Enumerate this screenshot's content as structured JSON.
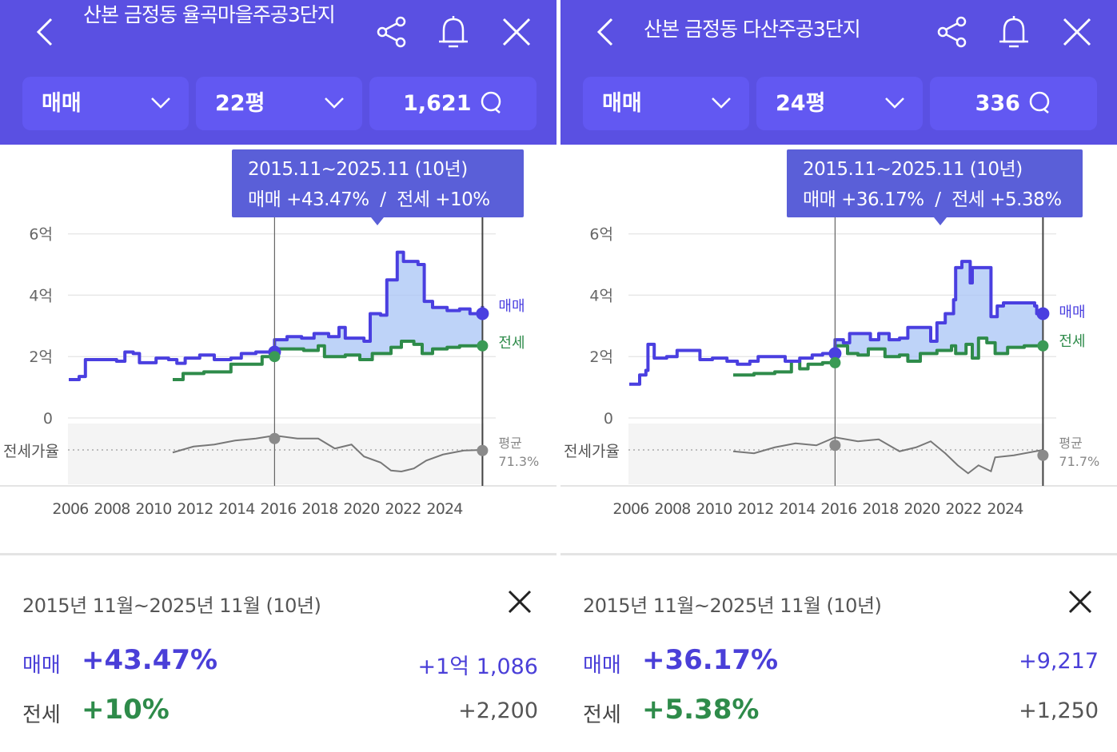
{
  "panels": [
    {
      "title": "산본 금정동 율곡마을주공3단지",
      "filter_type": "매매",
      "filter_size": "22평",
      "comment_count": "1,621",
      "tooltip": {
        "period": "2015.11~2025.11 (10년)",
        "maemae": "매매 +43.47%",
        "sep": "/",
        "jeonse": "전세 +10%"
      },
      "summary": {
        "period": "2015년 11월~2025년 11월 (10년)",
        "maemae_label": "매매",
        "maemae_pct": "+43.47%",
        "maemae_amt": "+1억 1,086",
        "jeonse_label": "전세",
        "jeonse_pct": "+10%",
        "jeonse_amt": "+2,200"
      },
      "chart_data": {
        "type": "line",
        "ylabel": "억",
        "ylim": [
          0,
          6
        ],
        "yticks": [
          "0",
          "2억",
          "4억",
          "6억"
        ],
        "xticks": [
          "2006",
          "2008",
          "2010",
          "2012",
          "2014",
          "2016",
          "2018",
          "2020",
          "2022",
          "2024"
        ],
        "xlim": [
          2006,
          2026
        ],
        "range": [
          2015.9,
          2025.9
        ],
        "legend": {
          "maemae": "매매",
          "jeonse": "전세"
        },
        "ratio_label": "전세가율",
        "avg_label": "평균",
        "avg_value": "71.3%",
        "avg": 71.3,
        "maemae": [
          [
            2006,
            1.25
          ],
          [
            2006.5,
            1.35
          ],
          [
            2006.8,
            1.9
          ],
          [
            2007.5,
            1.9
          ],
          [
            2008.3,
            1.85
          ],
          [
            2008.7,
            2.15
          ],
          [
            2009.1,
            2.1
          ],
          [
            2009.4,
            1.8
          ],
          [
            2010.2,
            1.95
          ],
          [
            2010.8,
            1.9
          ],
          [
            2011.2,
            1.78
          ],
          [
            2011.6,
            1.95
          ],
          [
            2012.3,
            2.05
          ],
          [
            2013,
            1.9
          ],
          [
            2013.8,
            1.95
          ],
          [
            2014.3,
            2.1
          ],
          [
            2015,
            2.15
          ],
          [
            2015.9,
            2.55
          ],
          [
            2016.5,
            2.65
          ],
          [
            2017.2,
            2.6
          ],
          [
            2017.8,
            2.75
          ],
          [
            2018.5,
            2.65
          ],
          [
            2019,
            2.95
          ],
          [
            2019.3,
            2.6
          ],
          [
            2020.2,
            2.5
          ],
          [
            2020.5,
            3.4
          ],
          [
            2021,
            3.35
          ],
          [
            2021.3,
            4.5
          ],
          [
            2021.8,
            5.4
          ],
          [
            2022.1,
            5.1
          ],
          [
            2022.8,
            5.0
          ],
          [
            2023.1,
            3.8
          ],
          [
            2023.5,
            3.6
          ],
          [
            2024.2,
            3.5
          ],
          [
            2024.8,
            3.55
          ],
          [
            2025.3,
            3.4
          ],
          [
            2025.9,
            3.65
          ]
        ],
        "jeonse": [
          [
            2011,
            1.25
          ],
          [
            2011.5,
            1.45
          ],
          [
            2012.5,
            1.5
          ],
          [
            2013.3,
            1.5
          ],
          [
            2013.8,
            1.75
          ],
          [
            2014.6,
            1.75
          ],
          [
            2015.3,
            2.0
          ],
          [
            2015.9,
            2.25
          ],
          [
            2016.5,
            2.25
          ],
          [
            2017.3,
            2.2
          ],
          [
            2018,
            2.35
          ],
          [
            2018.3,
            2.0
          ],
          [
            2019.3,
            2.05
          ],
          [
            2020,
            1.9
          ],
          [
            2020.6,
            2.1
          ],
          [
            2021.5,
            2.3
          ],
          [
            2022,
            2.5
          ],
          [
            2022.6,
            2.4
          ],
          [
            2023,
            2.1
          ],
          [
            2023.5,
            2.25
          ],
          [
            2024.2,
            2.3
          ],
          [
            2024.8,
            2.35
          ],
          [
            2025.9,
            2.45
          ]
        ],
        "ratio": [
          [
            2011,
            70
          ],
          [
            2012,
            73
          ],
          [
            2013,
            74
          ],
          [
            2014,
            76
          ],
          [
            2015,
            77
          ],
          [
            2015.9,
            78.5
          ],
          [
            2017,
            77
          ],
          [
            2018,
            77
          ],
          [
            2018.8,
            72
          ],
          [
            2019.6,
            74
          ],
          [
            2020.2,
            68
          ],
          [
            2021,
            65
          ],
          [
            2021.5,
            61
          ],
          [
            2022,
            60.5
          ],
          [
            2022.6,
            62
          ],
          [
            2023.2,
            66
          ],
          [
            2024,
            69
          ],
          [
            2025,
            71
          ],
          [
            2025.9,
            71.3
          ]
        ]
      }
    },
    {
      "title": "산본 금정동 다산주공3단지",
      "filter_type": "매매",
      "filter_size": "24평",
      "comment_count": "336",
      "tooltip": {
        "period": "2015.11~2025.11 (10년)",
        "maemae": "매매 +36.17%",
        "sep": "/",
        "jeonse": "전세 +5.38%"
      },
      "summary": {
        "period": "2015년 11월~2025년 11월 (10년)",
        "maemae_label": "매매",
        "maemae_pct": "+36.17%",
        "maemae_amt": "+9,217",
        "jeonse_label": "전세",
        "jeonse_pct": "+5.38%",
        "jeonse_amt": "+1,250"
      },
      "chart_data": {
        "type": "line",
        "ylabel": "억",
        "ylim": [
          0,
          6
        ],
        "yticks": [
          "0",
          "2억",
          "4억",
          "6억"
        ],
        "xticks": [
          "2006",
          "2008",
          "2010",
          "2012",
          "2014",
          "2016",
          "2018",
          "2020",
          "2022",
          "2024"
        ],
        "xlim": [
          2006,
          2026
        ],
        "range": [
          2015.9,
          2025.9
        ],
        "legend": {
          "maemae": "매매",
          "jeonse": "전세"
        },
        "ratio_label": "전세가율",
        "avg_label": "평균",
        "avg_value": "71.7%",
        "avg": 71.7,
        "maemae": [
          [
            2006,
            1.1
          ],
          [
            2006.5,
            1.4
          ],
          [
            2006.8,
            1.55
          ],
          [
            2006.9,
            2.4
          ],
          [
            2007.2,
            1.95
          ],
          [
            2007.8,
            2.0
          ],
          [
            2008.3,
            2.2
          ],
          [
            2009.2,
            2.2
          ],
          [
            2009.4,
            1.9
          ],
          [
            2010,
            1.95
          ],
          [
            2010.7,
            1.85
          ],
          [
            2011.2,
            1.75
          ],
          [
            2011.8,
            1.85
          ],
          [
            2012.2,
            2.0
          ],
          [
            2013,
            2.0
          ],
          [
            2013.5,
            1.85
          ],
          [
            2014.2,
            1.95
          ],
          [
            2014.8,
            2.05
          ],
          [
            2015.3,
            2.1
          ],
          [
            2015.9,
            2.55
          ],
          [
            2016.3,
            2.45
          ],
          [
            2016.6,
            2.75
          ],
          [
            2017.4,
            2.75
          ],
          [
            2017.6,
            2.55
          ],
          [
            2018,
            2.75
          ],
          [
            2018.5,
            2.55
          ],
          [
            2019,
            2.6
          ],
          [
            2019.4,
            2.95
          ],
          [
            2020.3,
            2.95
          ],
          [
            2020.5,
            2.5
          ],
          [
            2020.8,
            3.1
          ],
          [
            2021.2,
            3.4
          ],
          [
            2021.6,
            3.85
          ],
          [
            2021.7,
            4.9
          ],
          [
            2022,
            5.1
          ],
          [
            2022.3,
            5.1
          ],
          [
            2022.4,
            4.4
          ],
          [
            2022.5,
            4.9
          ],
          [
            2023.3,
            4.9
          ],
          [
            2023.4,
            3.3
          ],
          [
            2023.7,
            3.65
          ],
          [
            2024,
            3.75
          ],
          [
            2024.8,
            3.75
          ],
          [
            2025.5,
            3.65
          ],
          [
            2025.6,
            3.4
          ],
          [
            2025.9,
            3.45
          ]
        ],
        "jeonse": [
          [
            2011,
            1.4
          ],
          [
            2012,
            1.45
          ],
          [
            2013,
            1.5
          ],
          [
            2013.8,
            1.85
          ],
          [
            2014.2,
            1.6
          ],
          [
            2014.6,
            1.75
          ],
          [
            2015.3,
            1.8
          ],
          [
            2015.9,
            2.35
          ],
          [
            2016.5,
            2.1
          ],
          [
            2017,
            2.05
          ],
          [
            2017.5,
            2.25
          ],
          [
            2018.3,
            2.0
          ],
          [
            2019,
            2.05
          ],
          [
            2019.4,
            1.85
          ],
          [
            2020,
            2.1
          ],
          [
            2020.8,
            2.2
          ],
          [
            2021.5,
            2.35
          ],
          [
            2021.7,
            2.1
          ],
          [
            2022.2,
            2.4
          ],
          [
            2022.5,
            1.95
          ],
          [
            2022.8,
            2.6
          ],
          [
            2023.2,
            2.45
          ],
          [
            2023.6,
            2.1
          ],
          [
            2024.2,
            2.3
          ],
          [
            2025,
            2.35
          ],
          [
            2025.9,
            2.5
          ]
        ],
        "ratio": [
          [
            2011,
            71
          ],
          [
            2012,
            70
          ],
          [
            2013,
            73
          ],
          [
            2014,
            75
          ],
          [
            2015,
            74
          ],
          [
            2015.9,
            78
          ],
          [
            2017,
            76
          ],
          [
            2018,
            77
          ],
          [
            2019,
            71
          ],
          [
            2019.8,
            73
          ],
          [
            2020.5,
            76
          ],
          [
            2021.2,
            70
          ],
          [
            2021.8,
            64
          ],
          [
            2022.3,
            60
          ],
          [
            2022.8,
            64
          ],
          [
            2023.4,
            61
          ],
          [
            2023.6,
            68
          ],
          [
            2024.5,
            69
          ],
          [
            2025.9,
            71.7
          ]
        ]
      }
    }
  ],
  "colors": {
    "header": "#5a50e2",
    "maemae": "#4a3fe0",
    "jeonse": "#2e8b4a",
    "ratio": "#777777"
  }
}
